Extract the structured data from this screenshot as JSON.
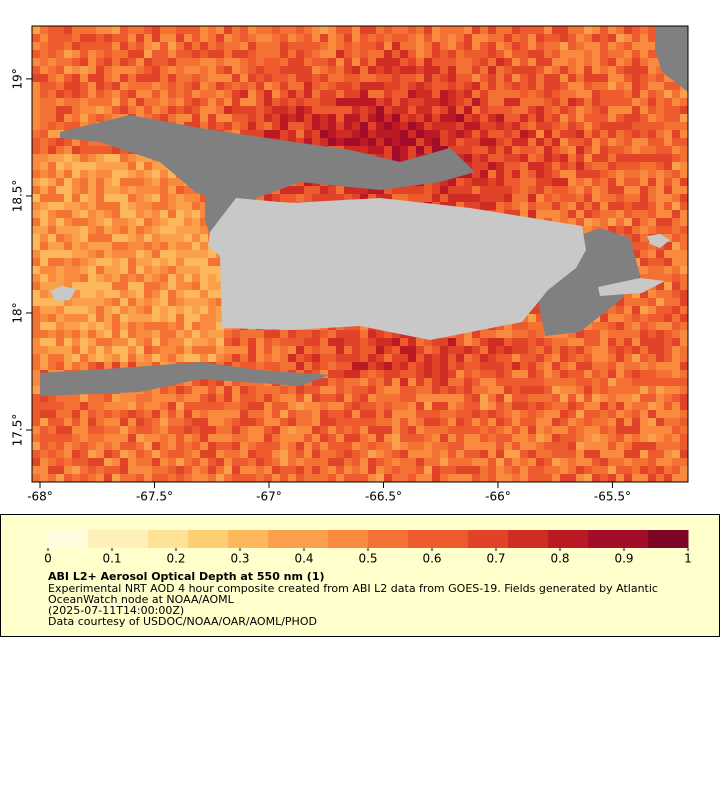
{
  "map_data": {
    "xlim": [
      -68.035,
      -65.17
    ],
    "ylim": [
      17.278,
      19.226
    ],
    "xticks": [
      {
        "value": -68,
        "label": "-68°"
      },
      {
        "value": -67.5,
        "label": "-67.5°"
      },
      {
        "value": -67,
        "label": "-67°"
      },
      {
        "value": -66.5,
        "label": "-66.5°"
      },
      {
        "value": -66,
        "label": "-66°"
      },
      {
        "value": -65.5,
        "label": "-65.5°"
      }
    ],
    "yticks": [
      {
        "value": 19,
        "label": "19°"
      },
      {
        "value": 18.5,
        "label": "18.5°"
      },
      {
        "value": 18,
        "label": "18°"
      },
      {
        "value": 17.5,
        "label": "17.5°"
      }
    ],
    "colorbar": {
      "lim": [
        0,
        1
      ],
      "ticks": [
        0,
        0.1,
        0.2,
        0.3,
        0.4,
        0.5,
        0.6,
        0.7,
        0.8,
        0.9,
        1
      ],
      "colors": [
        "#fffbdc",
        "#fef0b8",
        "#fde295",
        "#fdcf72",
        "#fcb85a",
        "#fba04a",
        "#f98a3e",
        "#f47134",
        "#ec5a2d",
        "#e04327",
        "#cf2d24",
        "#bb1a25",
        "#a30d2a",
        "#7d0526"
      ]
    },
    "title": "ABI L2+ Aerosol Optical Depth at 550 nm (1)",
    "description": [
      "Experimental NRT AOD 4 hour composite created from ABI L2 data from GOES-19. Fields generated by Atlantic",
      "OceanWatch node at NOAA/AOML",
      "(2025-07-11T14:00:00Z)",
      "Data courtesy of USDOC/NOAA/OAR/AOML/PHOD"
    ]
  }
}
